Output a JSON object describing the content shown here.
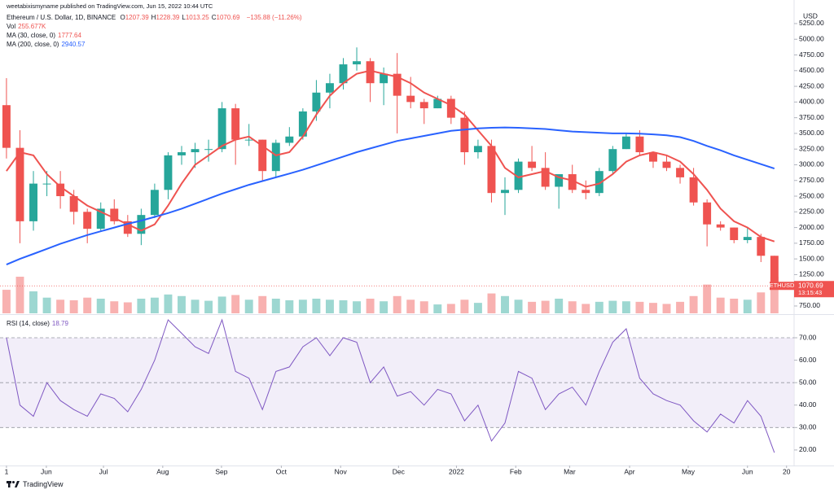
{
  "header": {
    "author": "weetabixismyname published on TradingView.com, Jun 15, 2022 10:44 UTC",
    "symbol": "Ethereum / U.S. Dollar, 1D, BINANCE",
    "ohlc": [
      {
        "key": "O",
        "value": "1207.39"
      },
      {
        "key": "H",
        "value": "1228.39"
      },
      {
        "key": "L",
        "value": "1013.25"
      },
      {
        "key": "C",
        "value": "1070.69"
      }
    ],
    "change": "−135.88 (−11.26%)",
    "volume_name": "Vol",
    "volume_value": "255.677K",
    "currency": "USD",
    "footer": "TradingView"
  },
  "chart_data": [
    {
      "type": "candlestick",
      "symbol_label": "ETHUSD",
      "countdown": "13:15:43",
      "up_color": "#26a69a",
      "down_color": "#ef5350",
      "grid": false,
      "xlim": [
        -0.48,
        58.46
      ],
      "ylim": [
        633,
        5431
      ],
      "yticks": [
        {
          "value": 5250,
          "label": "5250.00"
        },
        {
          "value": 5000,
          "label": "5000.00"
        },
        {
          "value": 4750,
          "label": "4750.00"
        },
        {
          "value": 4500,
          "label": "4500.00"
        },
        {
          "value": 4250,
          "label": "4250.00"
        },
        {
          "value": 4000,
          "label": "4000.00"
        },
        {
          "value": 3750,
          "label": "3750.00"
        },
        {
          "value": 3500,
          "label": "3500.00"
        },
        {
          "value": 3250,
          "label": "3250.00"
        },
        {
          "value": 3000,
          "label": "3000.00"
        },
        {
          "value": 2750,
          "label": "2750.00"
        },
        {
          "value": 2500,
          "label": "2500.00"
        },
        {
          "value": 2250,
          "label": "2250.00"
        },
        {
          "value": 2000,
          "label": "2000.00"
        },
        {
          "value": 1750,
          "label": "1750.00"
        },
        {
          "value": 1500,
          "label": "1500.00"
        },
        {
          "value": 1250,
          "label": "1250.00"
        },
        {
          "value": 750,
          "label": "750.00"
        }
      ],
      "open": [
        3950,
        3270,
        2100,
        2700,
        2700,
        2500,
        2250,
        1980,
        2300,
        2100,
        1900,
        2200,
        2600,
        3150,
        3200,
        3250,
        3250,
        3900,
        3400,
        3400,
        2900,
        3350,
        3450,
        3850,
        4150,
        4300,
        4600,
        4650,
        4300,
        4450,
        4100,
        4000,
        3900,
        4050,
        3750,
        3200,
        3300,
        2550,
        2600,
        3050,
        2950,
        2650,
        2850,
        2600,
        2550,
        2900,
        3250,
        3450,
        3200,
        3050,
        2950,
        2800,
        2400,
        2050,
        2000,
        1800,
        1850,
        1550
      ],
      "high": [
        4380,
        3550,
        2900,
        2900,
        2900,
        2600,
        2300,
        2400,
        2450,
        2200,
        2300,
        2700,
        3200,
        3300,
        3350,
        3400,
        4000,
        3970,
        3650,
        3400,
        3400,
        3600,
        3900,
        4350,
        4450,
        4700,
        4870,
        4700,
        4550,
        4780,
        4400,
        4050,
        4100,
        4100,
        3850,
        3400,
        3400,
        2800,
        3100,
        3300,
        3200,
        2850,
        3000,
        2750,
        2950,
        3300,
        3500,
        3550,
        3200,
        3150,
        3000,
        2950,
        2450,
        2100,
        2000,
        2000,
        1900,
        1550
      ],
      "low": [
        3100,
        1750,
        1950,
        2500,
        2300,
        2050,
        1750,
        1950,
        2050,
        1850,
        1720,
        2150,
        2450,
        3000,
        2950,
        3050,
        3200,
        3000,
        3300,
        2750,
        2800,
        3300,
        3400,
        3700,
        3900,
        4200,
        4500,
        4000,
        3950,
        3500,
        3900,
        3650,
        3900,
        3650,
        3000,
        3100,
        2400,
        2200,
        2550,
        2900,
        2600,
        2300,
        2550,
        2450,
        2500,
        2850,
        3250,
        3150,
        2950,
        2900,
        2700,
        2350,
        1700,
        1950,
        1750,
        1750,
        1450,
        1010
      ],
      "close": [
        3270,
        2100,
        2700,
        2700,
        2500,
        2250,
        1980,
        2300,
        2100,
        1900,
        2200,
        2600,
        3150,
        3200,
        3250,
        3250,
        3900,
        3400,
        3400,
        2900,
        3350,
        3450,
        3850,
        4150,
        4300,
        4600,
        4650,
        4300,
        4450,
        4100,
        4000,
        3900,
        4050,
        3750,
        3200,
        3300,
        2550,
        2600,
        3050,
        2950,
        2650,
        2850,
        2600,
        2550,
        2900,
        3250,
        3450,
        3200,
        3050,
        2950,
        2800,
        2400,
        2050,
        2000,
        1800,
        1850,
        1550,
        1070.69
      ],
      "volume": [
        450,
        700,
        420,
        300,
        260,
        250,
        300,
        280,
        230,
        210,
        280,
        300,
        360,
        330,
        260,
        240,
        320,
        350,
        260,
        330,
        280,
        250,
        260,
        280,
        260,
        250,
        230,
        280,
        230,
        330,
        260,
        230,
        170,
        180,
        260,
        200,
        380,
        330,
        260,
        220,
        240,
        280,
        230,
        180,
        220,
        240,
        230,
        220,
        200,
        180,
        220,
        330,
        550,
        300,
        280,
        260,
        400,
        700
      ],
      "series": [
        {
          "name": "MA (30, close, 0)",
          "color": "#ef5350",
          "values": [
            2900,
            3200,
            3150,
            2850,
            2650,
            2500,
            2350,
            2250,
            2150,
            2050,
            1950,
            2050,
            2350,
            2700,
            3000,
            3150,
            3300,
            3400,
            3450,
            3300,
            3150,
            3200,
            3450,
            3800,
            4100,
            4300,
            4450,
            4500,
            4450,
            4400,
            4300,
            4150,
            4050,
            3950,
            3800,
            3550,
            3300,
            2950,
            2800,
            2850,
            2900,
            2800,
            2750,
            2650,
            2700,
            2850,
            3050,
            3150,
            3200,
            3150,
            3050,
            2850,
            2600,
            2300,
            2100,
            2000,
            1850,
            1777.64
          ]
        },
        {
          "name": "MA (200, close, 0)",
          "color": "#2962ff",
          "values": [
            1410,
            1500,
            1580,
            1660,
            1740,
            1810,
            1880,
            1940,
            2000,
            2060,
            2110,
            2170,
            2230,
            2300,
            2380,
            2460,
            2540,
            2610,
            2680,
            2740,
            2800,
            2860,
            2920,
            2990,
            3060,
            3130,
            3200,
            3260,
            3320,
            3380,
            3420,
            3460,
            3500,
            3540,
            3560,
            3580,
            3590,
            3595,
            3590,
            3580,
            3570,
            3550,
            3530,
            3520,
            3510,
            3500,
            3500,
            3495,
            3485,
            3470,
            3440,
            3380,
            3300,
            3230,
            3150,
            3080,
            3010,
            2940.57
          ]
        }
      ]
    },
    {
      "type": "line",
      "name": "RSI (14, close)",
      "color": "#7e57c2",
      "band_color": "#ede7f6",
      "xlim": [
        -0.48,
        58.46
      ],
      "ylim": [
        13.8,
        79.8
      ],
      "bands": {
        "upper": 70,
        "middle": 50,
        "lower": 30
      },
      "yticks": [
        {
          "value": 70,
          "label": "70.00"
        },
        {
          "value": 60,
          "label": "60.00"
        },
        {
          "value": 50,
          "label": "50.00"
        },
        {
          "value": 40,
          "label": "40.00"
        },
        {
          "value": 30,
          "label": "30.00"
        },
        {
          "value": 20,
          "label": "20.00"
        }
      ],
      "xticks": [
        {
          "value": 0,
          "label": "1"
        },
        {
          "value": 2.96,
          "label": "Jun"
        },
        {
          "value": 7.2,
          "label": "Jul"
        },
        {
          "value": 11.6,
          "label": "Aug"
        },
        {
          "value": 15.96,
          "label": "Sep"
        },
        {
          "value": 20.4,
          "label": "Oct"
        },
        {
          "value": 24.8,
          "label": "Nov"
        },
        {
          "value": 29.1,
          "label": "Dec"
        },
        {
          "value": 33.4,
          "label": "2022"
        },
        {
          "value": 37.8,
          "label": "Feb"
        },
        {
          "value": 41.8,
          "label": "Mar"
        },
        {
          "value": 46.25,
          "label": "Apr"
        },
        {
          "value": 50.6,
          "label": "May"
        },
        {
          "value": 55.0,
          "label": "Jun"
        },
        {
          "value": 57.9,
          "label": "20"
        }
      ],
      "values": [
        70,
        40,
        35,
        50,
        42,
        38,
        35,
        45,
        43,
        37,
        47,
        60,
        78,
        72,
        66,
        63,
        78,
        55,
        52,
        38,
        55,
        57,
        66,
        70,
        62,
        70,
        68,
        50,
        57,
        44,
        46,
        40,
        47,
        45,
        33,
        40,
        24,
        32,
        55,
        52,
        38,
        45,
        48,
        40,
        55,
        68,
        74,
        52,
        45,
        42,
        40,
        33,
        28,
        36,
        32,
        42,
        35,
        18.79
      ]
    }
  ]
}
